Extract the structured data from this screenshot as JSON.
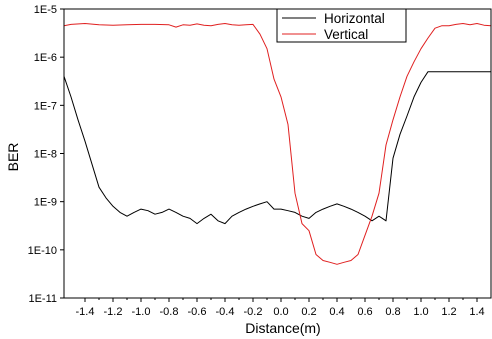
{
  "chart_data": {
    "type": "line",
    "title": "",
    "xlabel": "Distance(m)",
    "ylabel": "BER",
    "xscale": "linear",
    "yscale": "log",
    "xlim": [
      -1.55,
      1.5
    ],
    "ylim": [
      1e-11,
      1e-05
    ],
    "grid": false,
    "legend_position": "top-right",
    "x_ticks": [
      -1.4,
      -1.2,
      -1.0,
      -0.8,
      -0.6,
      -0.4,
      -0.2,
      0.0,
      0.2,
      0.4,
      0.6,
      0.8,
      1.0,
      1.2,
      1.4
    ],
    "x_tick_labels": [
      "-1.4",
      "-1.2",
      "-1.0",
      "-0.8",
      "-0.6",
      "-0.4",
      "-0.2",
      "0.0",
      "0.2",
      "0.4",
      "0.6",
      "0.8",
      "1.0",
      "1.2",
      "1.4"
    ],
    "y_ticks": [
      1e-11,
      1e-10,
      1e-09,
      1e-08,
      1e-07,
      1e-06,
      1e-05
    ],
    "y_tick_labels": [
      "1E-11",
      "1E-10",
      "1E-9",
      "1E-8",
      "1E-7",
      "1E-6",
      "1E-5"
    ],
    "series": [
      {
        "name": "Horizontal",
        "color": "#000000",
        "x": [
          -1.55,
          -1.5,
          -1.45,
          -1.4,
          -1.35,
          -1.3,
          -1.25,
          -1.2,
          -1.15,
          -1.1,
          -1.05,
          -1.0,
          -0.95,
          -0.9,
          -0.85,
          -0.8,
          -0.75,
          -0.7,
          -0.65,
          -0.6,
          -0.55,
          -0.5,
          -0.45,
          -0.4,
          -0.35,
          -0.3,
          -0.25,
          -0.2,
          -0.15,
          -0.1,
          -0.05,
          0.0,
          0.05,
          0.1,
          0.15,
          0.2,
          0.25,
          0.3,
          0.35,
          0.4,
          0.45,
          0.5,
          0.55,
          0.6,
          0.65,
          0.7,
          0.75,
          0.8,
          0.85,
          0.9,
          0.95,
          1.0,
          1.05,
          1.1,
          1.15,
          1.2,
          1.25,
          1.3,
          1.35,
          1.4,
          1.45,
          1.5
        ],
        "values": [
          4e-07,
          1.5e-07,
          5e-08,
          1.8e-08,
          6e-09,
          2e-09,
          1.2e-09,
          8e-10,
          6e-10,
          5e-10,
          6e-10,
          7e-10,
          6.5e-10,
          5.5e-10,
          6e-10,
          7e-10,
          6e-10,
          5e-10,
          4.5e-10,
          3.5e-10,
          4.5e-10,
          5.5e-10,
          4e-10,
          3.5e-10,
          5e-10,
          6e-10,
          7e-10,
          8e-10,
          9e-10,
          1e-09,
          7e-10,
          7e-10,
          6.5e-10,
          6e-10,
          5e-10,
          4.5e-10,
          6e-10,
          7e-10,
          8e-10,
          9e-10,
          8e-10,
          7e-10,
          6e-10,
          5e-10,
          4e-10,
          5e-10,
          4e-10,
          8e-09,
          2.5e-08,
          6e-08,
          1.5e-07,
          3e-07,
          5e-07,
          5e-07,
          5e-07,
          5e-07,
          5e-07,
          5e-07,
          5e-07,
          5e-07,
          5e-07,
          5e-07
        ]
      },
      {
        "name": "Vertical",
        "color": "#e02020",
        "x": [
          -1.55,
          -1.5,
          -1.4,
          -1.3,
          -1.2,
          -1.1,
          -1.0,
          -0.9,
          -0.8,
          -0.75,
          -0.7,
          -0.65,
          -0.6,
          -0.55,
          -0.5,
          -0.45,
          -0.4,
          -0.35,
          -0.3,
          -0.25,
          -0.2,
          -0.15,
          -0.1,
          -0.05,
          0.0,
          0.05,
          0.1,
          0.15,
          0.2,
          0.25,
          0.3,
          0.35,
          0.4,
          0.45,
          0.5,
          0.55,
          0.6,
          0.65,
          0.7,
          0.75,
          0.8,
          0.85,
          0.9,
          0.95,
          1.0,
          1.05,
          1.1,
          1.15,
          1.2,
          1.25,
          1.3,
          1.35,
          1.4,
          1.45,
          1.5
        ],
        "values": [
          4.5e-06,
          4.8e-06,
          5e-06,
          4.7e-06,
          4.6e-06,
          4.7e-06,
          4.8e-06,
          4.8e-06,
          4.7e-06,
          4.2e-06,
          4.7e-06,
          4.6e-06,
          4.9e-06,
          4.6e-06,
          4.5e-06,
          4.8e-06,
          5e-06,
          4.7e-06,
          4.6e-06,
          4.7e-06,
          4.8e-06,
          3e-06,
          1.5e-06,
          3.5e-07,
          1.5e-07,
          4e-08,
          1.5e-09,
          3.5e-10,
          2.5e-10,
          8e-11,
          6e-11,
          5.5e-11,
          5e-11,
          5.5e-11,
          6e-11,
          8e-11,
          2e-10,
          5e-10,
          1.5e-09,
          1.5e-08,
          5e-08,
          1.5e-07,
          4e-07,
          8e-07,
          1.5e-06,
          2.5e-06,
          4e-06,
          4.5e-06,
          4.5e-06,
          4.8e-06,
          5e-06,
          4.7e-06,
          5e-06,
          4.6e-06,
          4.5e-06
        ]
      }
    ]
  }
}
